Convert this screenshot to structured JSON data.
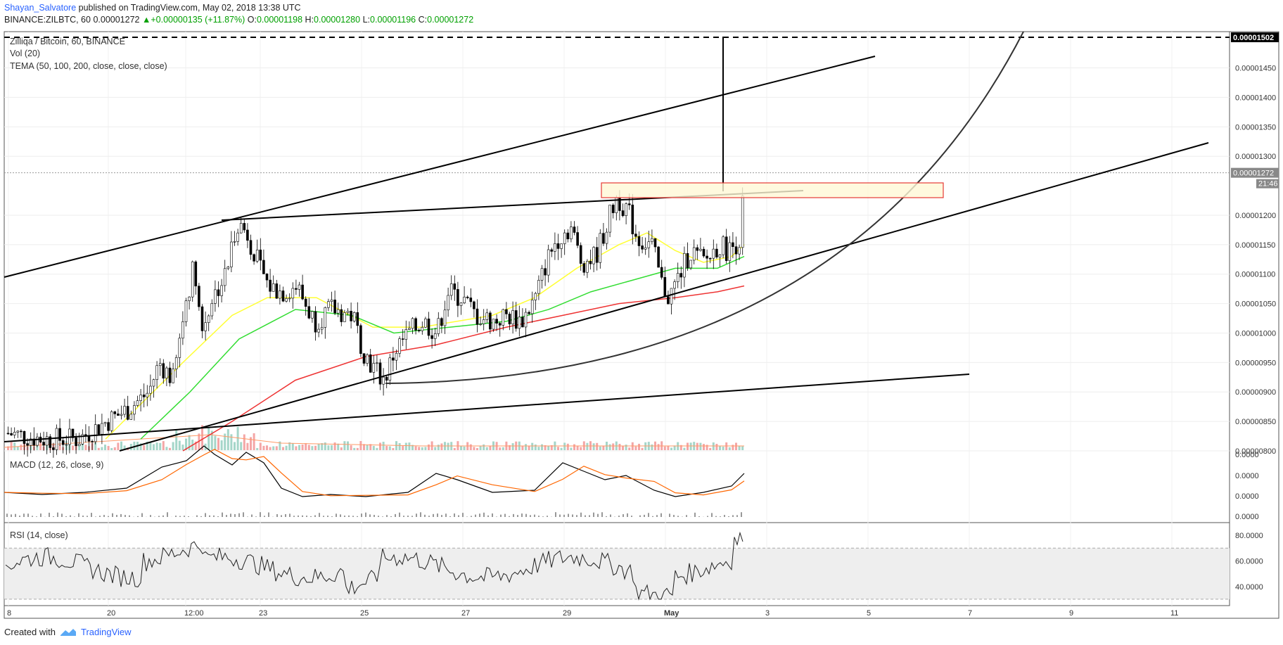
{
  "header": {
    "author": "Shayan_Salvatore",
    "published": "published on TradingView.com, May 02, 2018 13:38 UTC",
    "symbol": "BINANCE:ZILBTC, 60",
    "last": "0.00001272",
    "change": "+0.00000135 (+11.87%)",
    "o_label": "O:",
    "o_value": "0.00001198",
    "h_label": "H:",
    "h_value": "0.00001280",
    "l_label": "L:",
    "l_value": "0.00001196",
    "c_label": "C:",
    "c_value": "0.00001272"
  },
  "legend": {
    "main": "Zilliqa / Bitcoin, 60, BINANCE",
    "vol": "Vol (20)",
    "tema": "TEMA (50, 100, 200, close, close, close)",
    "macd": "MACD (12, 26, close, 9)",
    "rsi": "RSI (14, close)"
  },
  "footer": {
    "created_with": "Created with",
    "brand": "TradingView"
  },
  "colors": {
    "up": "#26a69a",
    "down": "#ef5350",
    "tema50": "#ffff33",
    "tema100": "#33dd33",
    "tema200": "#ee3333",
    "macd": "#000000",
    "signal": "#ff6600",
    "rsi": "#222222",
    "zone_fill": "#fff7d6",
    "zone_stroke": "#e53935"
  },
  "chart_data": [
    {
      "type": "candlestick",
      "title": "Zilliqa / Bitcoin, 60, BINANCE",
      "ylim": [
        8e-06,
        1.502e-05
      ],
      "price_axis_ticks": [
        "0.00001450",
        "0.00001400",
        "0.00001350",
        "0.00001300",
        "0.00001200",
        "0.00001150",
        "0.00001100",
        "0.00001050",
        "0.00001000",
        "0.00000950",
        "0.00000900",
        "0.00000850",
        "0.00000800"
      ],
      "price_badges": {
        "top": "0.00001502",
        "last": "0.00001272",
        "timer": "21:46"
      },
      "x_ticks": [
        "8",
        "20",
        "12:00",
        "23",
        "25",
        "27",
        "29",
        "May",
        "3",
        "5",
        "7",
        "9",
        "11"
      ],
      "series": [
        {
          "name": "TEMA 50",
          "approx_values": [
            8.2e-06,
            9.5e-06,
            1.05e-05,
            1.06e-05,
            1e-05,
            1.01e-05,
            1.03e-05,
            1.12e-05,
            1.17e-05,
            1.11e-05,
            1.15e-05
          ]
        },
        {
          "name": "TEMA 100",
          "approx_values": [
            8e-06,
            9e-06,
            1e-05,
            1.04e-05,
            9.9e-06,
            1.01e-05,
            1.02e-05,
            1.06e-05,
            1.1e-05,
            1.1e-05,
            1.13e-05
          ]
        },
        {
          "name": "TEMA 200",
          "approx_values": [
            7.8e-06,
            8.3e-06,
            9.2e-06,
            9.6e-06,
            9.7e-06,
            9.8e-06,
            1e-05,
            1.03e-05,
            1.05e-05,
            1.07e-05,
            1.08e-05
          ]
        }
      ]
    },
    {
      "type": "line",
      "title": "MACD (12, 26, close, 9)",
      "y_ticks": [
        "0.0000",
        "0.0000",
        "0.0000",
        "0.0000"
      ]
    },
    {
      "type": "line",
      "title": "RSI (14, close)",
      "y_ticks": [
        "80.0000",
        "60.0000",
        "40.0000"
      ],
      "band": [
        30,
        70
      ]
    }
  ]
}
